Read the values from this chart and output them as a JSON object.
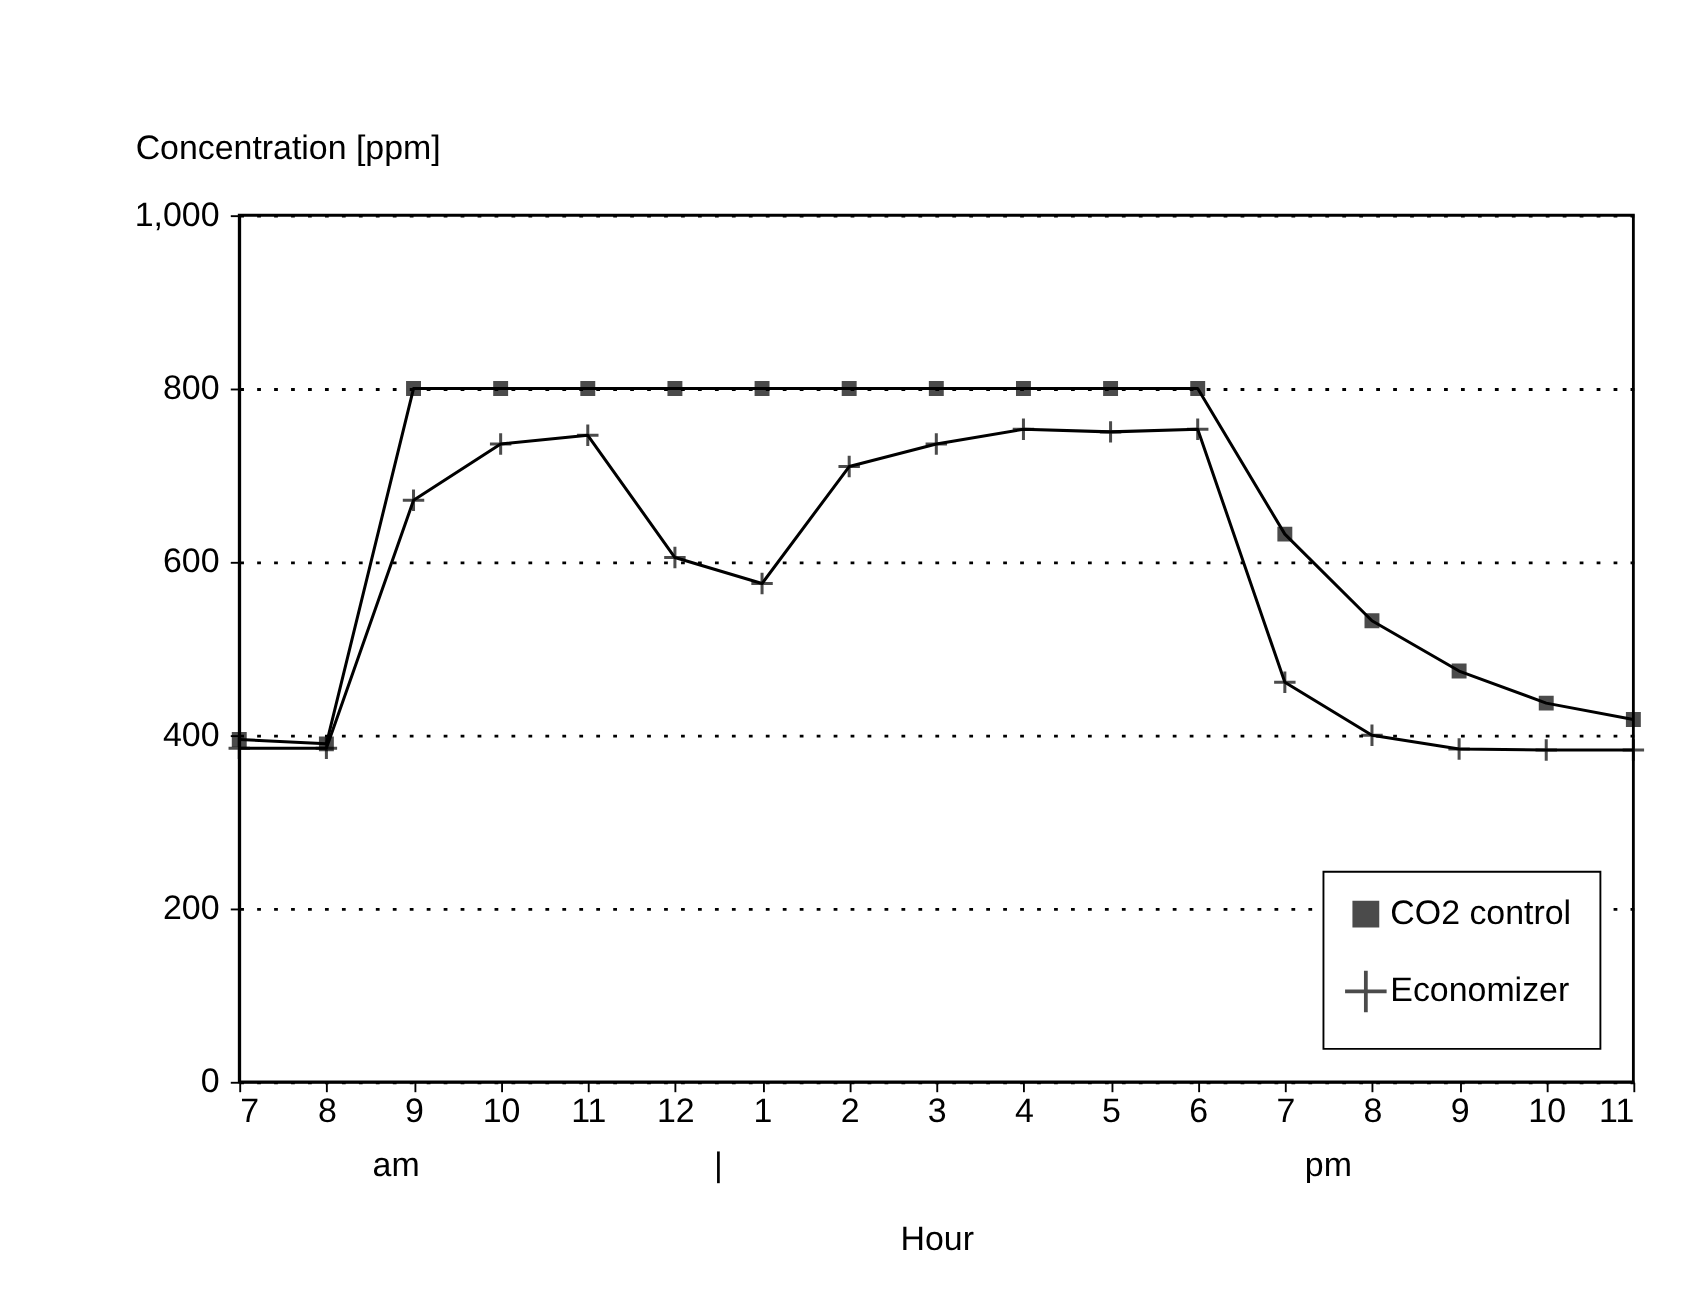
{
  "chart_data": {
    "type": "line",
    "ylabel": "Concentration [ppm]",
    "xlabel": "Hour",
    "categories": [
      "7",
      "8",
      "9",
      "10",
      "11",
      "12",
      "1",
      "2",
      "3",
      "4",
      "5",
      "6",
      "7",
      "8",
      "9",
      "10",
      "11"
    ],
    "series": [
      {
        "name": "CO2 control",
        "color": "#000000",
        "marker": "square",
        "values": [
          395,
          390,
          800,
          800,
          800,
          800,
          800,
          800,
          800,
          800,
          800,
          800,
          632,
          532,
          474,
          437,
          418
        ]
      },
      {
        "name": "Economizer",
        "color": "#000000",
        "marker": "cross",
        "values": [
          385,
          385,
          671,
          736,
          746,
          605,
          575,
          710,
          736,
          753,
          750,
          753,
          461,
          400,
          384,
          383,
          383
        ]
      }
    ],
    "ylim": [
      0,
      1000
    ],
    "yticks": [
      0,
      200,
      400,
      600,
      800,
      {
        "value": 1000,
        "label": "1,000"
      }
    ],
    "grid": "y",
    "legend": "bottom right",
    "line_style": "solid",
    "annotations": [
      "am",
      "|",
      "pm"
    ]
  }
}
